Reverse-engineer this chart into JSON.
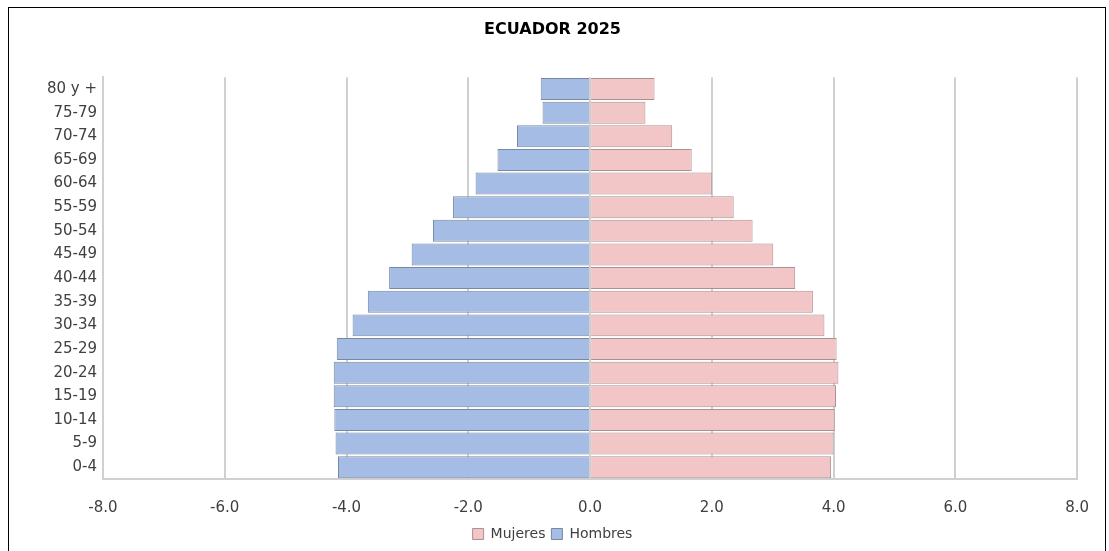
{
  "chart_data": {
    "type": "bar",
    "orientation": "horizontal",
    "stacked": true,
    "title": "ECUADOR 2025",
    "categories": [
      "80 y +",
      "75-79",
      "70-74",
      "65-69",
      "60-64",
      "55-59",
      "50-54",
      "45-49",
      "40-44",
      "35-39",
      "30-34",
      "25-29",
      "20-24",
      "15-19",
      "10-14",
      "5-9",
      "0-4"
    ],
    "series": [
      {
        "name": "Mujeres",
        "color": "#f2c6c6",
        "values": [
          1.06,
          0.91,
          1.35,
          1.67,
          2.0,
          2.36,
          2.67,
          3.01,
          3.37,
          3.66,
          3.85,
          4.05,
          4.08,
          4.04,
          4.02,
          4.0,
          3.96
        ]
      },
      {
        "name": "Hombres",
        "color": "#a5bde4",
        "values": [
          -0.81,
          -0.78,
          -1.2,
          -1.52,
          -1.88,
          -2.25,
          -2.58,
          -2.93,
          -3.3,
          -3.65,
          -3.9,
          -4.16,
          -4.21,
          -4.21,
          -4.2,
          -4.18,
          -4.14
        ]
      }
    ],
    "xlim": [
      -8,
      8
    ],
    "xticks": [
      {
        "value": -8,
        "label": "-8.0"
      },
      {
        "value": -6,
        "label": "-6.0"
      },
      {
        "value": -4,
        "label": "-4.0"
      },
      {
        "value": -2,
        "label": "-2.0"
      },
      {
        "value": 0,
        "label": "0.0"
      },
      {
        "value": 2,
        "label": "2.0"
      },
      {
        "value": 4,
        "label": "4.0"
      },
      {
        "value": 6,
        "label": "6.0"
      },
      {
        "value": 8,
        "label": "8.0"
      }
    ],
    "grid": "x",
    "legend": "bottom"
  }
}
